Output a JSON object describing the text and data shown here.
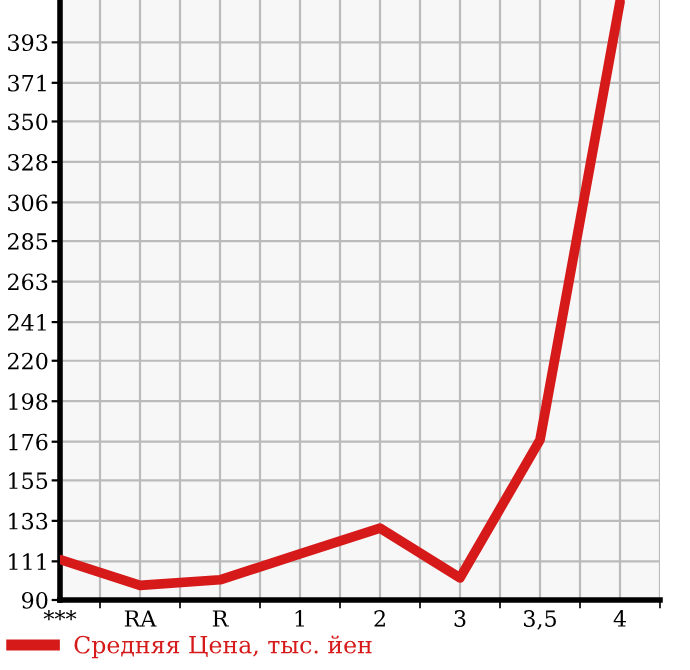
{
  "chart_data": {
    "type": "line",
    "categories": [
      "***",
      "RA",
      "R",
      "1",
      "2",
      "3",
      "3,5",
      "4"
    ],
    "series": [
      {
        "name": "Средняя Цена, тыс. йен",
        "color": "#d61a1a",
        "values": [
          112,
          98,
          101,
          115,
          129,
          102,
          177,
          415
        ]
      }
    ],
    "ylim": [
      90,
      416
    ],
    "yticks": [
      90,
      111,
      133,
      155,
      176,
      198,
      220,
      241,
      263,
      285,
      306,
      328,
      350,
      371,
      393
    ],
    "grid": true,
    "legend": "bottom left",
    "marker": "none",
    "line_style": "solid"
  }
}
